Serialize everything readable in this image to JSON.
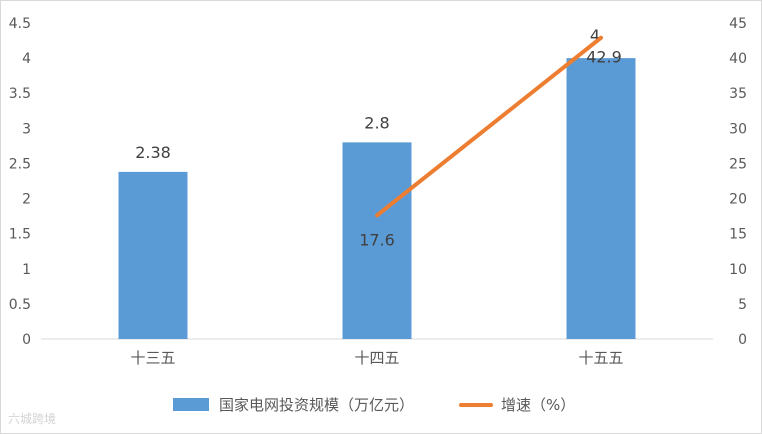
{
  "chart_data": {
    "type": "bar",
    "categories": [
      "十三五",
      "十四五",
      "十五五"
    ],
    "series": [
      {
        "name": "国家电网投资规模（万亿元）",
        "kind": "bar",
        "axis": "left",
        "values": [
          2.38,
          2.8,
          4
        ],
        "labels": [
          "2.38",
          "2.8",
          "4"
        ],
        "color": "#5b9bd5"
      },
      {
        "name": "增速（%）",
        "kind": "line",
        "axis": "right",
        "values": [
          null,
          17.6,
          42.9
        ],
        "labels": [
          "",
          "17.6",
          "42.9"
        ],
        "color": "#ed7d31"
      }
    ],
    "y_left": {
      "min": 0,
      "max": 4.5,
      "step": 0.5,
      "ticks": [
        "0",
        "0.5",
        "1",
        "1.5",
        "2",
        "2.5",
        "3",
        "3.5",
        "4",
        "4.5"
      ]
    },
    "y_right": {
      "min": 0,
      "max": 45,
      "step": 5,
      "ticks": [
        "0",
        "5",
        "10",
        "15",
        "20",
        "25",
        "30",
        "35",
        "40",
        "45"
      ]
    },
    "grid": false,
    "legend": "bottom"
  },
  "watermark": "六城跨境"
}
